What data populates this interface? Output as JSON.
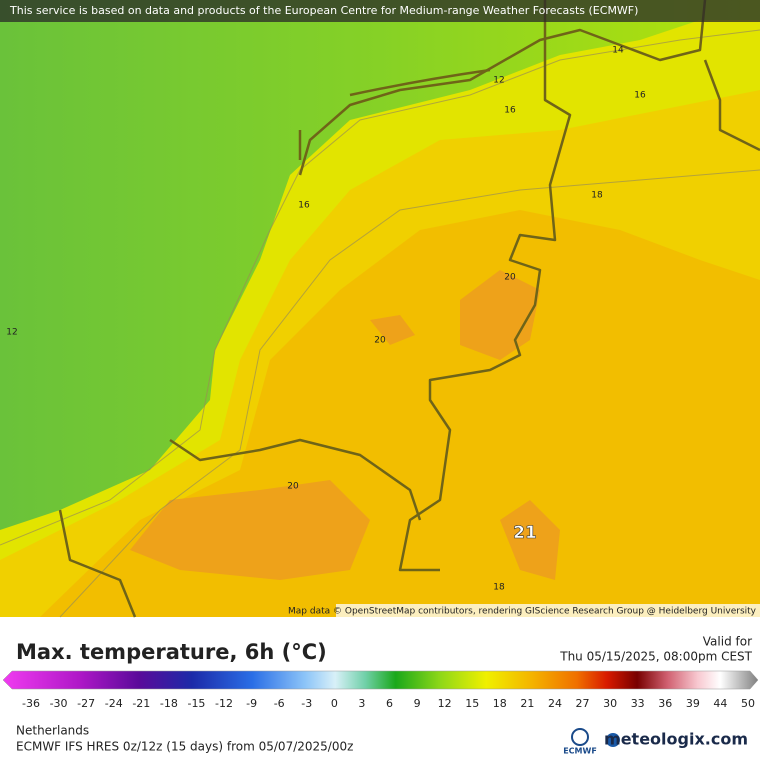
{
  "notice": "This service is based on data and products of the European Centre for Medium-range Weather Forecasts (ECMWF)",
  "map_attribution": "Map data © OpenStreetMap contributors, rendering GIScience Research Group @ Heidelberg University",
  "contour_labels": [
    14,
    12,
    16,
    16,
    16,
    18,
    20,
    20,
    20,
    21,
    18,
    12
  ],
  "legend": {
    "title": "Max. temperature, 6h (°C)",
    "valid_label": "Valid for",
    "valid_time": "Thu 05/15/2025, 08:00pm CEST",
    "ticks": [
      -36,
      -30,
      -27,
      -24,
      -21,
      -18,
      -15,
      -12,
      -9,
      -6,
      -3,
      0,
      3,
      6,
      9,
      12,
      15,
      18,
      21,
      24,
      27,
      30,
      33,
      36,
      39,
      44,
      50
    ]
  },
  "footer": {
    "region": "Netherlands",
    "model": "ECMWF IFS HRES 0z/12z (15 days) from 05/07/2025/00z",
    "ecmwf_logo": "ECMWF",
    "brand": "meteologix.com"
  }
}
